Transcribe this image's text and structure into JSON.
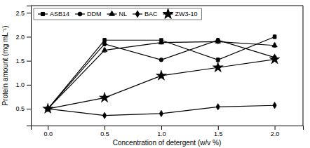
{
  "chart_data": {
    "type": "line",
    "xlabel": "Concentration of detergent (w/v %)",
    "ylabel": "Protein amount (mg mL⁻¹)",
    "x": [
      0.0,
      0.5,
      1.0,
      1.5,
      2.0
    ],
    "series": [
      {
        "name": "ASB14",
        "marker": "square",
        "values": [
          0.5,
          1.93,
          1.93,
          1.52,
          2.0
        ],
        "yerr": [
          0.03,
          0.04,
          0.03,
          0.04,
          0.04
        ]
      },
      {
        "name": "DDM",
        "marker": "circle",
        "values": [
          0.5,
          1.85,
          1.52,
          1.93,
          1.57
        ],
        "yerr": [
          0.03,
          0.04,
          0.03,
          0.04,
          0.04
        ]
      },
      {
        "name": "NL",
        "marker": "triangle",
        "values": [
          0.5,
          1.72,
          1.88,
          1.9,
          1.82
        ],
        "yerr": [
          0.03,
          0.04,
          0.03,
          0.04,
          0.04
        ]
      },
      {
        "name": "BAC",
        "marker": "diamond",
        "values": [
          0.5,
          0.36,
          0.4,
          0.54,
          0.57
        ],
        "yerr": [
          0.03,
          0.03,
          0.03,
          0.03,
          0.03
        ]
      },
      {
        "name": "ZW3-10",
        "marker": "star",
        "values": [
          0.5,
          0.73,
          1.19,
          1.36,
          1.53
        ],
        "yerr": [
          0.03,
          0.04,
          0.04,
          0.04,
          0.04
        ]
      }
    ],
    "color": "black",
    "xlim": [
      -0.15,
      2.25
    ],
    "ylim": [
      0.15,
      2.65
    ],
    "xticks": [
      {
        "value": 0,
        "label": "0.0"
      },
      0.5,
      {
        "value": 1,
        "label": "1.0"
      },
      1.5,
      {
        "value": 2,
        "label": "2.0"
      }
    ],
    "yticks": [
      0.5,
      {
        "value": 1,
        "label": "1.0"
      },
      1.5,
      {
        "value": 2,
        "label": "2.0"
      },
      2.5
    ],
    "grid": false,
    "legend": "upper left"
  }
}
